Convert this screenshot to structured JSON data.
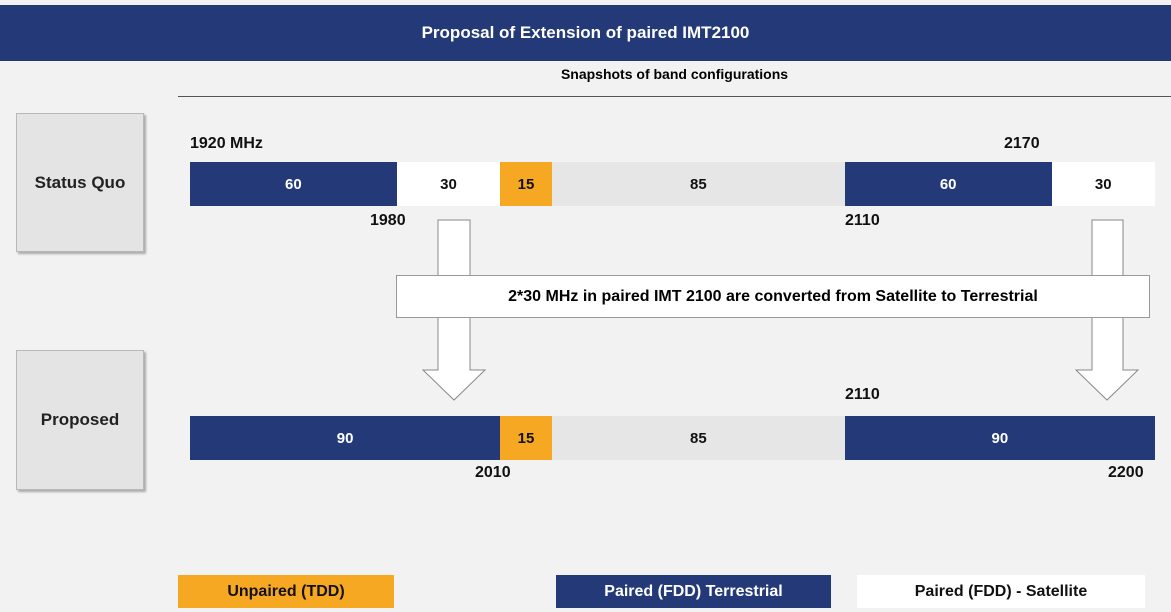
{
  "header": {
    "title": "Proposal of Extension of paired IMT2100"
  },
  "subtitle": "Snapshots of band configurations",
  "rows": [
    {
      "label": "Status Quo",
      "segments": [
        {
          "value": 60,
          "color": "#243a78"
        },
        {
          "value": 30,
          "color": "#ffffff"
        },
        {
          "value": 15,
          "color": "#f7a823"
        },
        {
          "value": 85,
          "color": "#e6e6e6"
        },
        {
          "value": 60,
          "color": "#243a78"
        },
        {
          "value": 30,
          "color": "#ffffff"
        }
      ],
      "markers": [
        "1920 MHz",
        "2170",
        "1980",
        "2110"
      ]
    },
    {
      "label": "Proposed",
      "segments": [
        {
          "value": 90,
          "color": "#243a78"
        },
        {
          "value": 15,
          "color": "#f7a823"
        },
        {
          "value": 85,
          "color": "#e6e6e6"
        },
        {
          "value": 90,
          "color": "#243a78"
        }
      ],
      "markers": [
        "2110",
        "2010",
        "2200"
      ]
    }
  ],
  "note": "2*30 MHz in paired IMT 2100 are converted from Satellite to Terrestrial",
  "legend": [
    {
      "label": "Unpaired (TDD)",
      "color": "#f7a823"
    },
    {
      "label": "Paired (FDD) Terrestrial",
      "color": "#243a78"
    },
    {
      "label": "Paired (FDD) - Satellite",
      "color": "#ffffff"
    }
  ]
}
